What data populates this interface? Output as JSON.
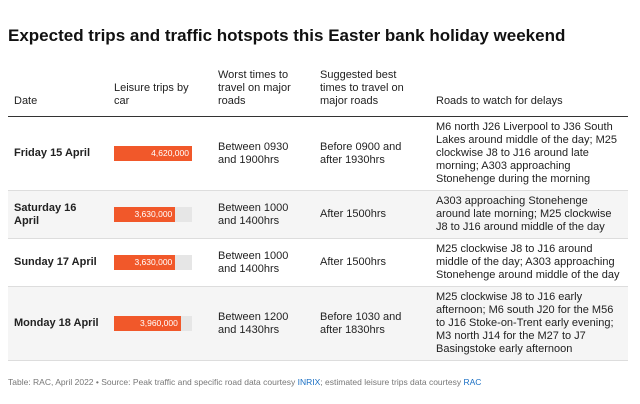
{
  "header": {
    "title": "Expected trips and traffic hotspots this Easter bank holiday weekend"
  },
  "table": {
    "columns": [
      "Date",
      "Leisure trips by car",
      "Worst times to travel on major roads",
      "Suggested best times to travel on major roads",
      "Roads to watch for delays"
    ],
    "rows": [
      {
        "date": "Friday 15 April",
        "trips": {
          "value": 4620000,
          "label": "4,620,000"
        },
        "worst": "Between 0930 and 1900hrs",
        "best": "Before 0900 and after 1930hrs",
        "roads": "M6 north J26 Liverpool to J36 South Lakes around middle of the day; M25 clockwise J8 to J16 around late morning; A303 approaching Stonehenge during the morning"
      },
      {
        "date": "Saturday 16 April",
        "trips": {
          "value": 3630000,
          "label": "3,630,000"
        },
        "worst": "Between 1000 and 1400hrs",
        "best": "After 1500hrs",
        "roads": "A303 approaching Stonehenge around late morning; M25 clockwise J8 to J16 around middle of the day"
      },
      {
        "date": "Sunday 17 April",
        "trips": {
          "value": 3630000,
          "label": "3,630,000"
        },
        "worst": "Between 1000 and 1400hrs",
        "best": "After 1500hrs",
        "roads": "M25 clockwise J8 to J16 around middle of the day; A303 approaching Stonehenge around middle of the day"
      },
      {
        "date": "Monday 18 April",
        "trips": {
          "value": 3960000,
          "label": "3,960,000"
        },
        "worst": "Between 1200 and 1430hrs",
        "best": "Before 1030 and after 1830hrs",
        "roads": "M25 clockwise J8 to J16 early afternoon; M6 south J20 for the M56 to J16 Stoke-on-Trent early evening; M3 north J14 for the M27 to J7 Basingstoke early afternoon"
      }
    ]
  },
  "footer": {
    "text_1": "Table: RAC, April 2022 • Source: Peak traffic and specific road data courtesy ",
    "link_1": "INRIX",
    "text_2": "; estimated leisure trips data courtesy ",
    "link_2": "RAC"
  }
}
